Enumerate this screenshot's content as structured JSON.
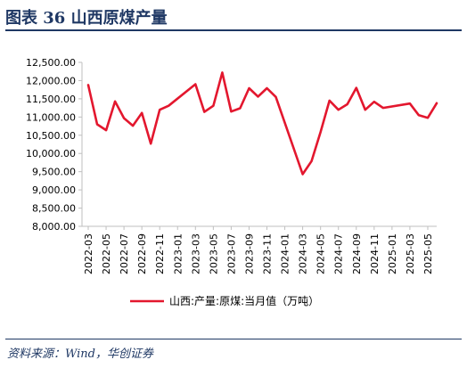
{
  "figure": {
    "title": "图表  36     山西原煤产量",
    "source": "资料来源：Wind，华创证券"
  },
  "colors": {
    "accent": "#1f3864",
    "series": "#e3172e",
    "axis": "#bfbfbf",
    "text": "#000000"
  },
  "chart_data": {
    "type": "line",
    "title": "",
    "xlabel": "",
    "ylabel": "",
    "ylim": [
      8000,
      12500
    ],
    "yticks": [
      "8,000.00",
      "8,500.00",
      "9,000.00",
      "9,500.00",
      "10,000.00",
      "10,500.00",
      "11,000.00",
      "11,500.00",
      "12,000.00",
      "12,500.00"
    ],
    "xtick_labels": [
      "2022-03",
      "2022-05",
      "2022-07",
      "2022-09",
      "2022-11",
      "2023-01",
      "2023-03",
      "2023-05",
      "2023-07",
      "2023-09",
      "2023-11",
      "2024-01",
      "2024-03",
      "2024-05",
      "2024-07",
      "2024-09",
      "2024-11",
      "2025-01",
      "2025-03",
      "2025-05"
    ],
    "grid": false,
    "legend_position": "bottom",
    "x": [
      "2022-03",
      "2022-04",
      "2022-05",
      "2022-06",
      "2022-07",
      "2022-08",
      "2022-09",
      "2022-10",
      "2022-11",
      "2022-12",
      "2023-03",
      "2023-04",
      "2023-05",
      "2023-06",
      "2023-07",
      "2023-08",
      "2023-09",
      "2023-10",
      "2023-11",
      "2023-12",
      "2024-03",
      "2024-04",
      "2024-05",
      "2024-06",
      "2024-07",
      "2024-08",
      "2024-09",
      "2024-10",
      "2024-11",
      "2024-12",
      "2025-03",
      "2025-04",
      "2025-05",
      "2025-06"
    ],
    "series": [
      {
        "name": "山西:产量:原煤:当月值（万吨）",
        "values": [
          11880,
          10800,
          10640,
          11430,
          10970,
          10760,
          11110,
          10270,
          11200,
          11310,
          11900,
          11140,
          11310,
          12220,
          11150,
          11240,
          11790,
          11560,
          11790,
          11550,
          9430,
          9790,
          10590,
          11450,
          11200,
          11350,
          11800,
          11200,
          11420,
          11250,
          11370,
          11050,
          10980,
          11380
        ]
      }
    ]
  }
}
